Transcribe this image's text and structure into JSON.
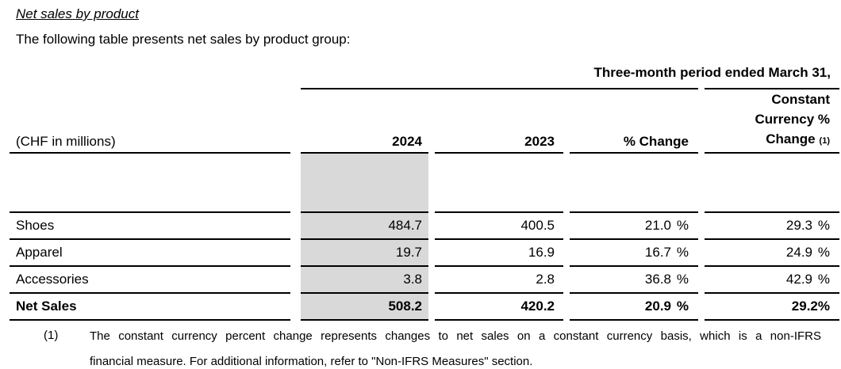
{
  "document": {
    "title": "Net sales by product",
    "intro": "The following table presents net sales by product group:"
  },
  "table": {
    "spanner_header": "Three-month period ended March 31,",
    "unit_label": "(CHF in millions)",
    "col_2024": "2024",
    "col_2023": "2023",
    "col_pct_change": "% Change",
    "col_cc_line1": "Constant",
    "col_cc_line2": "Currency %",
    "col_cc_line3": "Change",
    "col_cc_footnote_ref": "(1)",
    "rows": [
      {
        "label": "Shoes",
        "y2024": "484.7",
        "y2023": "400.5",
        "pct_change": "21.0",
        "pct_sign": "%",
        "cc_change": "29.3",
        "cc_sign": "%"
      },
      {
        "label": "Apparel",
        "y2024": "19.7",
        "y2023": "16.9",
        "pct_change": "16.7",
        "pct_sign": "%",
        "cc_change": "24.9",
        "cc_sign": "%"
      },
      {
        "label": "Accessories",
        "y2024": "3.8",
        "y2023": "2.8",
        "pct_change": "36.8",
        "pct_sign": "%",
        "cc_change": "42.9",
        "cc_sign": "%"
      },
      {
        "label": "Net Sales",
        "y2024": "508.2",
        "y2023": "420.2",
        "pct_change": "20.9",
        "pct_sign": "%",
        "cc_change": "29.2%",
        "cc_sign": ""
      }
    ]
  },
  "footnote": {
    "ref": "(1)",
    "line1": "The constant currency percent change represents changes to net sales on a constant currency basis, which is a non-IFRS",
    "line2": "financial measure. For additional information, refer to \"Non-IFRS Measures\" section."
  },
  "colors": {
    "shade": "#d9d9d9",
    "rule": "#000000"
  }
}
